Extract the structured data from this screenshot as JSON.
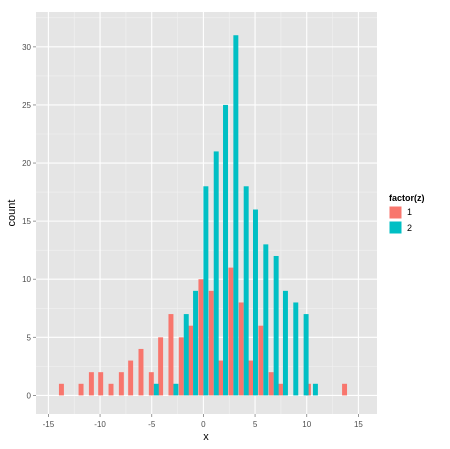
{
  "chart_data": {
    "type": "bar",
    "title": "",
    "xlabel": "x",
    "ylabel": "count",
    "xlim": [
      -16.2,
      16.8
    ],
    "ylim": [
      -1.6,
      33.0
    ],
    "xticks": [
      -15,
      -10,
      -5,
      0,
      5,
      10,
      15
    ],
    "yticks": [
      0,
      5,
      10,
      15,
      20,
      25,
      30
    ],
    "grid": true,
    "bin_width": 0.96,
    "legend": {
      "title": "factor(z)",
      "placement": "right"
    },
    "series": [
      {
        "name": "1",
        "color": "#F8766D",
        "bins": [
          [
            -13.5,
            1
          ],
          [
            -11.6,
            1
          ],
          [
            -10.6,
            2
          ],
          [
            -9.7,
            2
          ],
          [
            -8.7,
            1
          ],
          [
            -7.7,
            2
          ],
          [
            -6.8,
            3
          ],
          [
            -5.8,
            4
          ],
          [
            -4.8,
            2
          ],
          [
            -3.9,
            5
          ],
          [
            -2.9,
            7
          ],
          [
            -1.9,
            5
          ],
          [
            -1.0,
            6
          ],
          [
            0.0,
            10
          ],
          [
            1.0,
            9
          ],
          [
            1.9,
            3
          ],
          [
            2.9,
            11
          ],
          [
            3.9,
            8
          ],
          [
            4.8,
            3
          ],
          [
            5.8,
            6
          ],
          [
            6.8,
            2
          ],
          [
            7.7,
            1
          ],
          [
            10.4,
            1
          ],
          [
            13.9,
            1
          ]
        ]
      },
      {
        "name": "2",
        "color": "#00BFC4",
        "bins": [
          [
            -4.8,
            1
          ],
          [
            -2.9,
            1
          ],
          [
            -1.9,
            7
          ],
          [
            -1.0,
            9
          ],
          [
            0.0,
            18
          ],
          [
            1.0,
            21
          ],
          [
            1.9,
            25
          ],
          [
            2.9,
            31
          ],
          [
            3.9,
            18
          ],
          [
            4.8,
            16
          ],
          [
            5.8,
            13
          ],
          [
            6.8,
            12
          ],
          [
            7.7,
            9
          ],
          [
            8.7,
            8
          ],
          [
            9.7,
            7
          ],
          [
            10.6,
            1
          ]
        ]
      }
    ]
  }
}
